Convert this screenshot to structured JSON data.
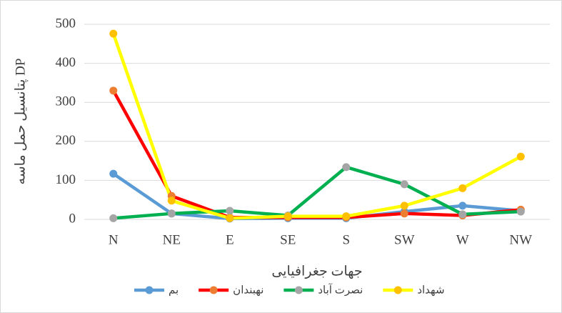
{
  "chart_data": {
    "type": "line",
    "y_label": "پتانسیل حمل ماسه DP",
    "x_label": "جهات جغرافیایی",
    "categories": [
      "N",
      "NE",
      "E",
      "SE",
      "S",
      "SW",
      "W",
      "NW"
    ],
    "series": [
      {
        "name": "بم",
        "color": "#5b9bd5",
        "marker_color": "#5b9bd5",
        "values": [
          117,
          15,
          2,
          3,
          3,
          20,
          35,
          22
        ]
      },
      {
        "name": "نهبندان",
        "color": "#ff0000",
        "marker_color": "#ed7d31",
        "values": [
          330,
          60,
          5,
          5,
          5,
          15,
          10,
          25
        ]
      },
      {
        "name": "نصرت آباد",
        "color": "#00b050",
        "marker_color": "#a5a5a5",
        "values": [
          3,
          15,
          22,
          10,
          134,
          90,
          13,
          20
        ]
      },
      {
        "name": "شهداد",
        "color": "#ffff00",
        "marker_color": "#ffc000",
        "values": [
          476,
          48,
          3,
          8,
          8,
          35,
          80,
          161
        ]
      }
    ],
    "ylim": [
      0,
      500
    ],
    "yticks": [
      0,
      100,
      200,
      300,
      400,
      500
    ],
    "grid": true
  }
}
